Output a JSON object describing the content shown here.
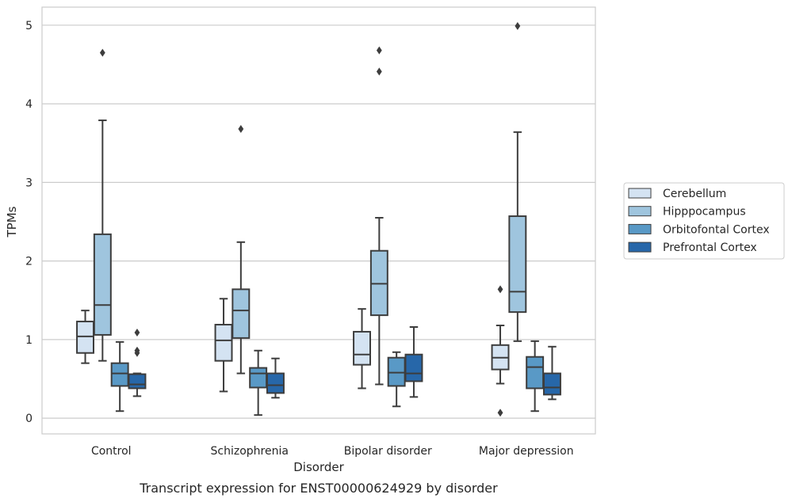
{
  "chart_data": {
    "type": "box",
    "caption": "Transcript expression for ENST00000624929 by disorder",
    "xlabel": "Disorder",
    "ylabel": "TPMs",
    "ylim": [
      -0.2,
      5.23
    ],
    "yticks": [
      0,
      1,
      2,
      3,
      4,
      5
    ],
    "grid": "horizontal",
    "legend_position": "right",
    "categories": [
      "Control",
      "Schizophrenia",
      "Bipolar disorder",
      "Major depression"
    ],
    "series": [
      {
        "name": "Cerebellum",
        "color": "#d4e3f2",
        "boxes": [
          {
            "whislo": 0.7,
            "q1": 0.83,
            "med": 1.04,
            "q3": 1.23,
            "whishi": 1.37,
            "fliers": []
          },
          {
            "whislo": 0.34,
            "q1": 0.73,
            "med": 0.99,
            "q3": 1.19,
            "whishi": 1.52,
            "fliers": []
          },
          {
            "whislo": 0.38,
            "q1": 0.68,
            "med": 0.81,
            "q3": 1.1,
            "whishi": 1.39,
            "fliers": []
          },
          {
            "whislo": 0.44,
            "q1": 0.62,
            "med": 0.77,
            "q3": 0.93,
            "whishi": 1.18,
            "fliers": [
              1.64,
              0.07
            ]
          }
        ]
      },
      {
        "name": "Hipppocampus",
        "color": "#9fc5de",
        "boxes": [
          {
            "whislo": 0.73,
            "q1": 1.06,
            "med": 1.44,
            "q3": 2.34,
            "whishi": 3.79,
            "fliers": [
              4.65
            ]
          },
          {
            "whislo": 0.57,
            "q1": 1.02,
            "med": 1.37,
            "q3": 1.64,
            "whishi": 2.24,
            "fliers": [
              3.68
            ]
          },
          {
            "whislo": 0.43,
            "q1": 1.31,
            "med": 1.71,
            "q3": 2.13,
            "whishi": 2.55,
            "fliers": [
              4.68,
              4.41
            ]
          },
          {
            "whislo": 0.98,
            "q1": 1.35,
            "med": 1.61,
            "q3": 2.57,
            "whishi": 3.64,
            "fliers": [
              4.99
            ]
          }
        ]
      },
      {
        "name": "Orbitofontal Cortex",
        "color": "#5999c6",
        "boxes": [
          {
            "whislo": 0.09,
            "q1": 0.41,
            "med": 0.57,
            "q3": 0.7,
            "whishi": 0.97,
            "fliers": []
          },
          {
            "whislo": 0.04,
            "q1": 0.39,
            "med": 0.57,
            "q3": 0.64,
            "whishi": 0.86,
            "fliers": []
          },
          {
            "whislo": 0.15,
            "q1": 0.41,
            "med": 0.58,
            "q3": 0.77,
            "whishi": 0.84,
            "fliers": []
          },
          {
            "whislo": 0.09,
            "q1": 0.38,
            "med": 0.65,
            "q3": 0.78,
            "whishi": 0.98,
            "fliers": []
          }
        ]
      },
      {
        "name": "Prefrontal Cortex",
        "color": "#2767a9",
        "boxes": [
          {
            "whislo": 0.28,
            "q1": 0.38,
            "med": 0.43,
            "q3": 0.56,
            "whishi": 0.57,
            "fliers": [
              1.09,
              0.86,
              0.83
            ]
          },
          {
            "whislo": 0.26,
            "q1": 0.32,
            "med": 0.42,
            "q3": 0.57,
            "whishi": 0.76,
            "fliers": []
          },
          {
            "whislo": 0.27,
            "q1": 0.47,
            "med": 0.57,
            "q3": 0.81,
            "whishi": 1.16,
            "fliers": []
          },
          {
            "whislo": 0.24,
            "q1": 0.3,
            "med": 0.39,
            "q3": 0.57,
            "whishi": 0.91,
            "fliers": []
          }
        ]
      }
    ]
  }
}
